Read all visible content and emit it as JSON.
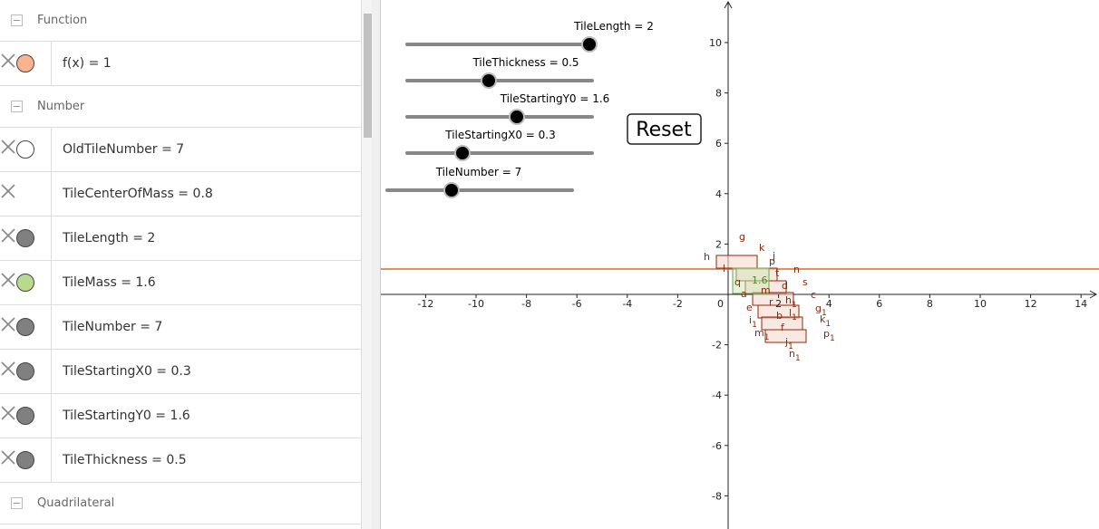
{
  "algebra": {
    "sections": [
      {
        "title": "Function",
        "items": [
          {
            "text": "f(x) = 1",
            "color": "#f9b38e"
          }
        ]
      },
      {
        "title": "Number",
        "items": [
          {
            "text": "OldTileNumber = 7",
            "color": "#ffffff"
          },
          {
            "text": "TileCenterOfMass = 0.8"
          },
          {
            "text": "TileLength = 2",
            "color": "#808080"
          },
          {
            "text": "TileMass = 1.6",
            "color": "#b9d98e"
          },
          {
            "text": "TileNumber = 7",
            "color": "#808080"
          },
          {
            "text": "TileStartingX0 = 0.3",
            "color": "#808080"
          },
          {
            "text": "TileStartingY0 = 1.6",
            "color": "#808080"
          },
          {
            "text": "TileThickness = 0.5",
            "color": "#808080"
          }
        ]
      },
      {
        "title": "Quadrilateral",
        "items": []
      }
    ]
  },
  "sliders": [
    {
      "label": "TileLength = 2"
    },
    {
      "label": "TileThickness = 0.5"
    },
    {
      "label": "TileStartingY0 = 1.6"
    },
    {
      "label": "TileStartingX0 = 0.3"
    },
    {
      "label": "TileNumber = 7"
    }
  ],
  "button": "Reset",
  "graphics": {
    "xticks": [
      -12,
      -10,
      -8,
      -6,
      -4,
      -2,
      2,
      4,
      6,
      8,
      10,
      12,
      14
    ],
    "yticks": [
      10,
      8,
      6,
      4,
      2,
      -2,
      -4,
      -6,
      -8
    ],
    "origin": 0,
    "labels": [
      {
        "text": "h"
      },
      {
        "text": "g"
      },
      {
        "text": "k"
      },
      {
        "text": "j"
      },
      {
        "text": "p"
      },
      {
        "text": "l"
      },
      {
        "text": "t"
      },
      {
        "text": "n"
      },
      {
        "text": "q"
      },
      {
        "text": "1.6"
      },
      {
        "text": "s"
      },
      {
        "text": "a"
      },
      {
        "text": "m"
      },
      {
        "text": "d"
      },
      {
        "text": "r"
      },
      {
        "text": "h",
        "sub": "1"
      },
      {
        "text": "c"
      },
      {
        "text": "e"
      },
      {
        "text": "g",
        "sub": "1"
      },
      {
        "text": "i",
        "sub": "1"
      },
      {
        "text": "b"
      },
      {
        "text": "l",
        "sub": "1"
      },
      {
        "text": "k",
        "sub": "1"
      },
      {
        "text": "m",
        "sub": "1"
      },
      {
        "text": "f"
      },
      {
        "text": "p",
        "sub": "1"
      },
      {
        "text": "j",
        "sub": "1"
      },
      {
        "text": "n",
        "sub": "1"
      }
    ]
  }
}
